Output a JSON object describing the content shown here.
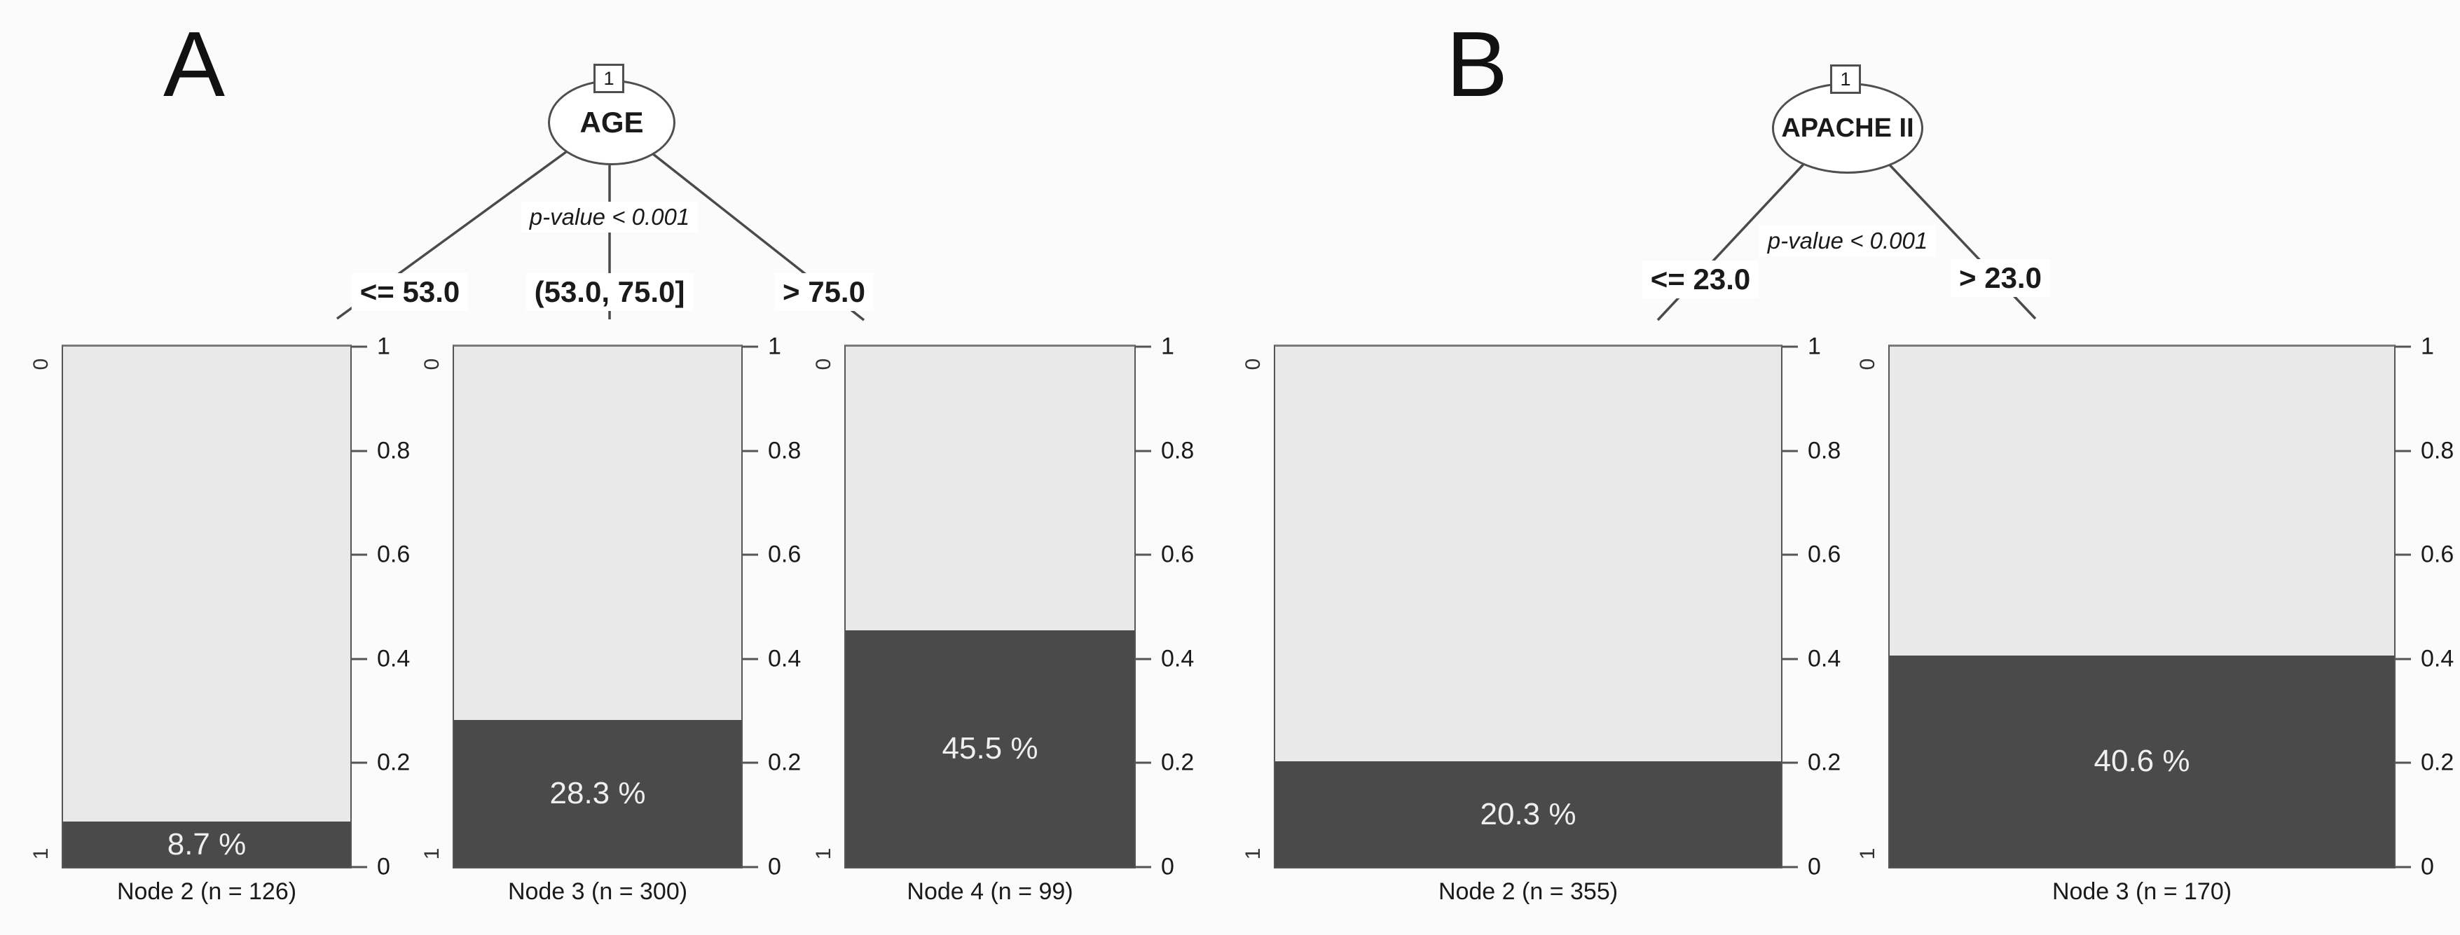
{
  "figure": {
    "background": "#fbfbfb",
    "axis": {
      "ticks": [
        "1",
        "0.8",
        "0.6",
        "0.4",
        "0.2",
        "0"
      ],
      "category_top": "0",
      "category_bottom": "1"
    },
    "colors": {
      "dark_bar": "#4a4a4a",
      "light_bar": "#e9e9e9",
      "percent_text": "#efefef",
      "edge_line": "#4a4a4a",
      "box_border": "#565656",
      "text": "#1a1a1a"
    }
  },
  "panels": [
    {
      "letter": "A",
      "root": {
        "id": "1",
        "variable": "AGE",
        "p_value": "p-value < 0.001"
      },
      "branches": [
        {
          "label": "<= 53.0"
        },
        {
          "label": "(53.0, 75.0]"
        },
        {
          "label": "> 75.0"
        }
      ],
      "nodes": [
        {
          "title": "Node 2 (n = 126)",
          "percent_label": "8.7 %",
          "value": 0.087
        },
        {
          "title": "Node 3 (n = 300)",
          "percent_label": "28.3 %",
          "value": 0.283
        },
        {
          "title": "Node 4 (n = 99)",
          "percent_label": "45.5 %",
          "value": 0.455
        }
      ]
    },
    {
      "letter": "B",
      "root": {
        "id": "1",
        "variable": "APACHE II",
        "p_value": "p-value < 0.001"
      },
      "branches": [
        {
          "label": "<= 23.0"
        },
        {
          "label": "> 23.0"
        }
      ],
      "nodes": [
        {
          "title": "Node 2 (n = 355)",
          "percent_label": "20.3 %",
          "value": 0.203
        },
        {
          "title": "Node 3 (n = 170)",
          "percent_label": "40.6 %",
          "value": 0.406
        }
      ]
    }
  ],
  "chart_data": [
    {
      "type": "bar",
      "title": "Conditional inference tree A",
      "root_variable": "AGE",
      "root_node_id": 1,
      "p_value": "p-value < 0.001",
      "split_labels": [
        "<= 53.0",
        "(53.0, 75.0]",
        "> 75.0"
      ],
      "categories": [
        "Node 2 (n = 126)",
        "Node 3 (n = 300)",
        "Node 4 (n = 99)"
      ],
      "n": [
        126,
        300,
        99
      ],
      "values": [
        0.087,
        0.283,
        0.455
      ],
      "value_labels": [
        "8.7 %",
        "28.3 %",
        "45.5 %"
      ],
      "ylim": [
        0,
        1
      ],
      "yticks": [
        0,
        0.2,
        0.4,
        0.6,
        0.8,
        1
      ],
      "stacked_categories_left_axis": [
        "0",
        "1"
      ],
      "grid": false,
      "legend": false
    },
    {
      "type": "bar",
      "title": "Conditional inference tree B",
      "root_variable": "APACHE II",
      "root_node_id": 1,
      "p_value": "p-value < 0.001",
      "split_labels": [
        "<= 23.0",
        "> 23.0"
      ],
      "categories": [
        "Node 2 (n = 355)",
        "Node 3 (n = 170)"
      ],
      "n": [
        355,
        170
      ],
      "values": [
        0.203,
        0.406
      ],
      "value_labels": [
        "20.3 %",
        "40.6 %"
      ],
      "ylim": [
        0,
        1
      ],
      "yticks": [
        0,
        0.2,
        0.4,
        0.6,
        0.8,
        1
      ],
      "stacked_categories_left_axis": [
        "0",
        "1"
      ],
      "grid": false,
      "legend": false
    }
  ]
}
